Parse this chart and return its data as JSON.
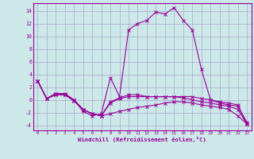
{
  "xlabel": "Windchill (Refroidissement éolien,°C)",
  "bg_color": "#cce8e8",
  "line_color": "#990099",
  "grid_color": "#aaaacc",
  "xlim": [
    -0.5,
    23.5
  ],
  "ylim": [
    -4.8,
    15.2
  ],
  "yticks": [
    -4,
    -2,
    0,
    2,
    4,
    6,
    8,
    10,
    12,
    14
  ],
  "xticks": [
    0,
    1,
    2,
    3,
    4,
    5,
    6,
    7,
    8,
    9,
    10,
    11,
    12,
    13,
    14,
    15,
    16,
    17,
    18,
    19,
    20,
    21,
    22,
    23
  ],
  "series1_x": [
    0,
    1,
    2,
    3,
    4,
    5,
    6,
    7,
    8,
    9,
    10,
    11,
    12,
    13,
    14,
    15,
    16,
    17,
    18,
    19,
    20,
    21,
    22,
    23
  ],
  "series1_y": [
    3.0,
    0.2,
    1.0,
    1.0,
    0.0,
    -1.8,
    -2.5,
    -2.2,
    3.5,
    0.5,
    11.0,
    12.0,
    12.5,
    13.8,
    13.5,
    14.5,
    12.5,
    11.0,
    4.8,
    0.0,
    -0.5,
    -0.8,
    -1.0,
    -3.5
  ],
  "series2_x": [
    0,
    1,
    2,
    3,
    4,
    5,
    6,
    7,
    8,
    9,
    10,
    11,
    12,
    13,
    14,
    15,
    16,
    17,
    18,
    19,
    20,
    21,
    22,
    23
  ],
  "series2_y": [
    3.0,
    0.2,
    1.0,
    0.8,
    -0.2,
    -1.5,
    -2.2,
    -2.5,
    -2.2,
    -1.8,
    -1.5,
    -1.2,
    -1.0,
    -0.8,
    -0.5,
    -0.3,
    -0.3,
    -0.5,
    -0.8,
    -1.0,
    -1.2,
    -1.5,
    -2.5,
    -3.8
  ],
  "series3_x": [
    0,
    1,
    2,
    3,
    4,
    5,
    6,
    7,
    8,
    9,
    10,
    11,
    12,
    13,
    14,
    15,
    16,
    17,
    18,
    19,
    20,
    21,
    22,
    23
  ],
  "series3_y": [
    3.0,
    0.2,
    0.8,
    0.8,
    0.0,
    -1.5,
    -2.2,
    -2.5,
    -0.5,
    0.2,
    0.5,
    0.5,
    0.5,
    0.5,
    0.5,
    0.5,
    0.5,
    0.5,
    0.2,
    0.0,
    -0.3,
    -0.5,
    -0.8,
    -3.8
  ],
  "series4_x": [
    0,
    1,
    2,
    3,
    4,
    5,
    6,
    7,
    8,
    9,
    10,
    11,
    12,
    13,
    14,
    15,
    16,
    17,
    18,
    19,
    20,
    21,
    22,
    23
  ],
  "series4_y": [
    3.0,
    0.2,
    0.8,
    0.8,
    0.0,
    -1.5,
    -2.2,
    -2.5,
    -0.3,
    0.3,
    0.8,
    0.8,
    0.5,
    0.5,
    0.5,
    0.5,
    0.3,
    0.0,
    -0.3,
    -0.5,
    -0.8,
    -1.0,
    -1.5,
    -3.8
  ]
}
